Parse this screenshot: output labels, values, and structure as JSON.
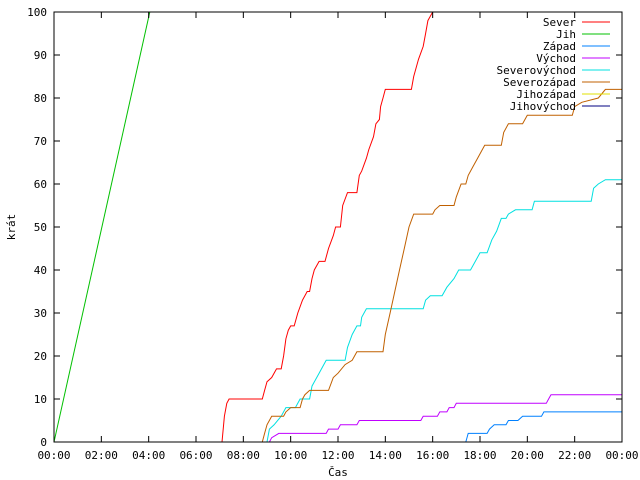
{
  "chart_data": {
    "type": "line",
    "xlabel": "Čas",
    "ylabel": "krát",
    "xlim": [
      0,
      24
    ],
    "ylim": [
      0,
      100
    ],
    "grid": false,
    "legend_position": "top-right",
    "x_ticks": [
      {
        "value": 0,
        "label": "00:00"
      },
      {
        "value": 2,
        "label": "02:00"
      },
      {
        "value": 4,
        "label": "04:00"
      },
      {
        "value": 6,
        "label": "06:00"
      },
      {
        "value": 8,
        "label": "08:00"
      },
      {
        "value": 10,
        "label": "10:00"
      },
      {
        "value": 12,
        "label": "12:00"
      },
      {
        "value": 14,
        "label": "14:00"
      },
      {
        "value": 16,
        "label": "16:00"
      },
      {
        "value": 18,
        "label": "18:00"
      },
      {
        "value": 20,
        "label": "20:00"
      },
      {
        "value": 22,
        "label": "22:00"
      },
      {
        "value": 24,
        "label": "00:00"
      }
    ],
    "y_ticks": [
      {
        "value": 0,
        "label": "0"
      },
      {
        "value": 10,
        "label": "10"
      },
      {
        "value": 20,
        "label": "20"
      },
      {
        "value": 30,
        "label": "30"
      },
      {
        "value": 40,
        "label": "40"
      },
      {
        "value": 50,
        "label": "50"
      },
      {
        "value": 60,
        "label": "60"
      },
      {
        "value": 70,
        "label": "70"
      },
      {
        "value": 80,
        "label": "80"
      },
      {
        "value": 90,
        "label": "90"
      },
      {
        "value": 100,
        "label": "100"
      }
    ],
    "series": [
      {
        "name": "Sever",
        "color": "#ff0000",
        "points": [
          [
            0,
            0
          ],
          [
            7.1,
            0
          ],
          [
            7.2,
            6
          ],
          [
            7.3,
            9
          ],
          [
            7.4,
            10
          ],
          [
            8.8,
            10
          ],
          [
            8.9,
            12
          ],
          [
            9.0,
            14
          ],
          [
            9.2,
            15
          ],
          [
            9.4,
            17
          ],
          [
            9.6,
            17
          ],
          [
            9.7,
            20
          ],
          [
            9.8,
            24
          ],
          [
            9.9,
            26
          ],
          [
            10.0,
            27
          ],
          [
            10.15,
            27
          ],
          [
            10.3,
            30
          ],
          [
            10.5,
            33
          ],
          [
            10.7,
            35
          ],
          [
            10.8,
            35
          ],
          [
            10.9,
            38
          ],
          [
            11.0,
            40
          ],
          [
            11.2,
            42
          ],
          [
            11.45,
            42
          ],
          [
            11.6,
            45
          ],
          [
            11.8,
            48
          ],
          [
            11.9,
            50
          ],
          [
            12.1,
            50
          ],
          [
            12.2,
            55
          ],
          [
            12.4,
            58
          ],
          [
            12.8,
            58
          ],
          [
            12.9,
            62
          ],
          [
            13.0,
            63
          ],
          [
            13.2,
            66
          ],
          [
            13.3,
            68
          ],
          [
            13.5,
            71
          ],
          [
            13.6,
            74
          ],
          [
            13.75,
            75
          ],
          [
            13.8,
            78
          ],
          [
            13.9,
            80
          ],
          [
            14.0,
            82
          ],
          [
            15.1,
            82
          ],
          [
            15.2,
            85
          ],
          [
            15.4,
            89
          ],
          [
            15.6,
            92
          ],
          [
            15.7,
            95
          ],
          [
            15.8,
            98
          ],
          [
            15.9,
            99
          ],
          [
            16.0,
            100
          ],
          [
            16.2,
            100
          ]
        ]
      },
      {
        "name": "Jih",
        "color": "#00c000",
        "points": [
          [
            0,
            0
          ],
          [
            4.05,
            100
          ]
        ]
      },
      {
        "name": "Západ",
        "color": "#0080ff",
        "points": [
          [
            0,
            0
          ],
          [
            17.4,
            0
          ],
          [
            17.5,
            2
          ],
          [
            18.3,
            2
          ],
          [
            18.4,
            3
          ],
          [
            18.6,
            4
          ],
          [
            19.1,
            4
          ],
          [
            19.2,
            5
          ],
          [
            19.6,
            5
          ],
          [
            19.8,
            6
          ],
          [
            20.6,
            6
          ],
          [
            20.7,
            7
          ],
          [
            24,
            7
          ]
        ]
      },
      {
        "name": "Východ",
        "color": "#c000ff",
        "points": [
          [
            0,
            0
          ],
          [
            9.1,
            0
          ],
          [
            9.2,
            1
          ],
          [
            9.5,
            2
          ],
          [
            11.5,
            2
          ],
          [
            11.6,
            3
          ],
          [
            12.0,
            3
          ],
          [
            12.1,
            4
          ],
          [
            12.8,
            4
          ],
          [
            12.9,
            5
          ],
          [
            15.5,
            5
          ],
          [
            15.6,
            6
          ],
          [
            16.2,
            6
          ],
          [
            16.3,
            7
          ],
          [
            16.6,
            7
          ],
          [
            16.7,
            8
          ],
          [
            16.9,
            8
          ],
          [
            17.0,
            9
          ],
          [
            20.8,
            9
          ],
          [
            20.9,
            10
          ],
          [
            21.0,
            11
          ],
          [
            24,
            11
          ]
        ]
      },
      {
        "name": "Severovýchod",
        "color": "#00e0e0",
        "points": [
          [
            0,
            0
          ],
          [
            9.0,
            0
          ],
          [
            9.1,
            3
          ],
          [
            9.3,
            4
          ],
          [
            9.6,
            6
          ],
          [
            9.8,
            8
          ],
          [
            10.2,
            8
          ],
          [
            10.4,
            10
          ],
          [
            10.8,
            10
          ],
          [
            10.9,
            13
          ],
          [
            11.2,
            16
          ],
          [
            11.5,
            19
          ],
          [
            12.3,
            19
          ],
          [
            12.4,
            22
          ],
          [
            12.6,
            25
          ],
          [
            12.8,
            27
          ],
          [
            12.95,
            27
          ],
          [
            13.0,
            29
          ],
          [
            13.2,
            31
          ],
          [
            15.6,
            31
          ],
          [
            15.7,
            33
          ],
          [
            15.9,
            34
          ],
          [
            16.4,
            34
          ],
          [
            16.6,
            36
          ],
          [
            16.9,
            38
          ],
          [
            17.1,
            40
          ],
          [
            17.6,
            40
          ],
          [
            17.8,
            42
          ],
          [
            18.0,
            44
          ],
          [
            18.3,
            44
          ],
          [
            18.5,
            47
          ],
          [
            18.7,
            49
          ],
          [
            18.9,
            52
          ],
          [
            19.1,
            52
          ],
          [
            19.2,
            53
          ],
          [
            19.5,
            54
          ],
          [
            20.2,
            54
          ],
          [
            20.3,
            56
          ],
          [
            22.7,
            56
          ],
          [
            22.8,
            59
          ],
          [
            23.0,
            60
          ],
          [
            23.3,
            61
          ],
          [
            24,
            61
          ]
        ]
      },
      {
        "name": "Severozápad",
        "color": "#c06000",
        "points": [
          [
            0,
            0
          ],
          [
            8.8,
            0
          ],
          [
            8.9,
            2
          ],
          [
            9.0,
            4
          ],
          [
            9.2,
            6
          ],
          [
            9.7,
            6
          ],
          [
            9.8,
            7
          ],
          [
            10.0,
            8
          ],
          [
            10.4,
            8
          ],
          [
            10.5,
            10
          ],
          [
            10.6,
            11
          ],
          [
            10.8,
            12
          ],
          [
            11.6,
            12
          ],
          [
            11.8,
            15
          ],
          [
            12.0,
            16
          ],
          [
            12.3,
            18
          ],
          [
            12.6,
            19
          ],
          [
            12.8,
            21
          ],
          [
            13.9,
            21
          ],
          [
            14.0,
            25
          ],
          [
            14.2,
            30
          ],
          [
            14.4,
            35
          ],
          [
            14.6,
            40
          ],
          [
            14.8,
            45
          ],
          [
            15.0,
            50
          ],
          [
            15.2,
            53
          ],
          [
            16.0,
            53
          ],
          [
            16.1,
            54
          ],
          [
            16.3,
            55
          ],
          [
            16.9,
            55
          ],
          [
            17.0,
            57
          ],
          [
            17.2,
            60
          ],
          [
            17.4,
            60
          ],
          [
            17.5,
            62
          ],
          [
            17.7,
            64
          ],
          [
            17.9,
            66
          ],
          [
            18.2,
            69
          ],
          [
            18.9,
            69
          ],
          [
            19.0,
            72
          ],
          [
            19.2,
            74
          ],
          [
            19.8,
            74
          ],
          [
            20.0,
            76
          ],
          [
            21.9,
            76
          ],
          [
            22.0,
            78
          ],
          [
            22.3,
            79
          ],
          [
            23.0,
            80
          ],
          [
            23.3,
            82
          ],
          [
            24,
            82
          ]
        ]
      },
      {
        "name": "Jihozápad",
        "color": "#e0e000",
        "points": [
          [
            0,
            0
          ],
          [
            24,
            0
          ]
        ]
      },
      {
        "name": "Jihovýchod",
        "color": "#000080",
        "points": [
          [
            0,
            0
          ],
          [
            24,
            0
          ]
        ]
      }
    ]
  }
}
